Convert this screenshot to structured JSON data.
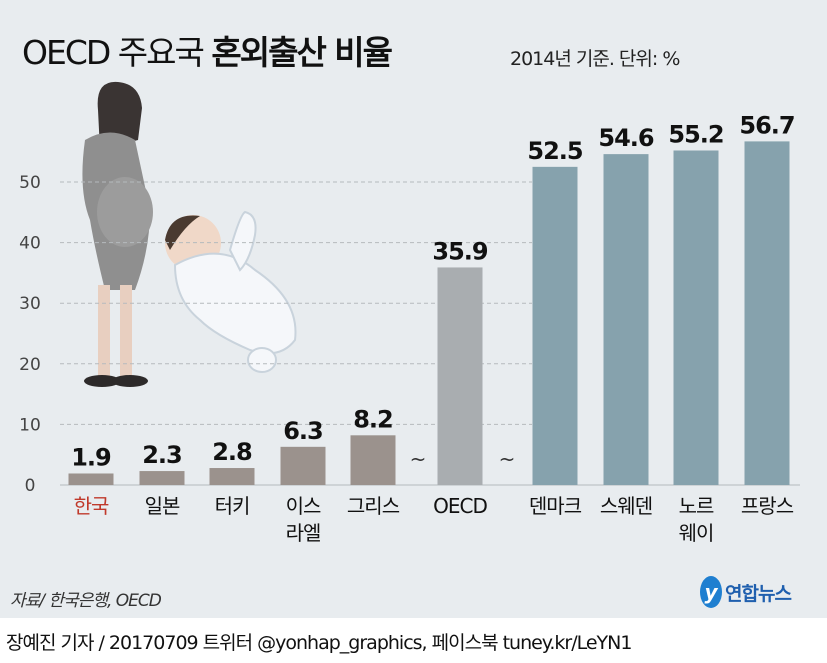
{
  "header": {
    "title_prefix": "OECD 주요국",
    "title_bold": "혼외출산 비율",
    "subtitle": "2014년 기준. 단위: %"
  },
  "chart_data": {
    "type": "bar",
    "title": "OECD 주요국 혼외출산 비율",
    "ylabel": "%",
    "ylim": [
      0,
      57
    ],
    "yticks": [
      0,
      10,
      20,
      30,
      40,
      50
    ],
    "grid": true,
    "categories": [
      "한국",
      "일본",
      "터키",
      "이스\n라엘",
      "그리스",
      "OECD",
      "덴마크",
      "스웨덴",
      "노르\n웨이",
      "프랑스"
    ],
    "values": [
      1.9,
      2.3,
      2.8,
      6.3,
      8.2,
      35.9,
      52.5,
      54.6,
      55.2,
      56.7
    ],
    "value_labels": [
      "1.9",
      "2.3",
      "2.8",
      "6.3",
      "8.2",
      "35.9",
      "52.5",
      "54.6",
      "55.2",
      "56.7"
    ],
    "axis_break_marker": "~",
    "colors": {
      "asia": "#9b928d",
      "oecd": "#a9adb0",
      "europe": "#86a2ad",
      "highlight_label": "#c0392b"
    }
  },
  "footer": {
    "source": "자료/ 한국은행, OECD",
    "logo_mark": "y",
    "logo_text": "연합뉴스",
    "credit": "장예진 기자 / 20170709 트위터 @yonhap_graphics, 페이스북 tuney.kr/LeYN1"
  }
}
